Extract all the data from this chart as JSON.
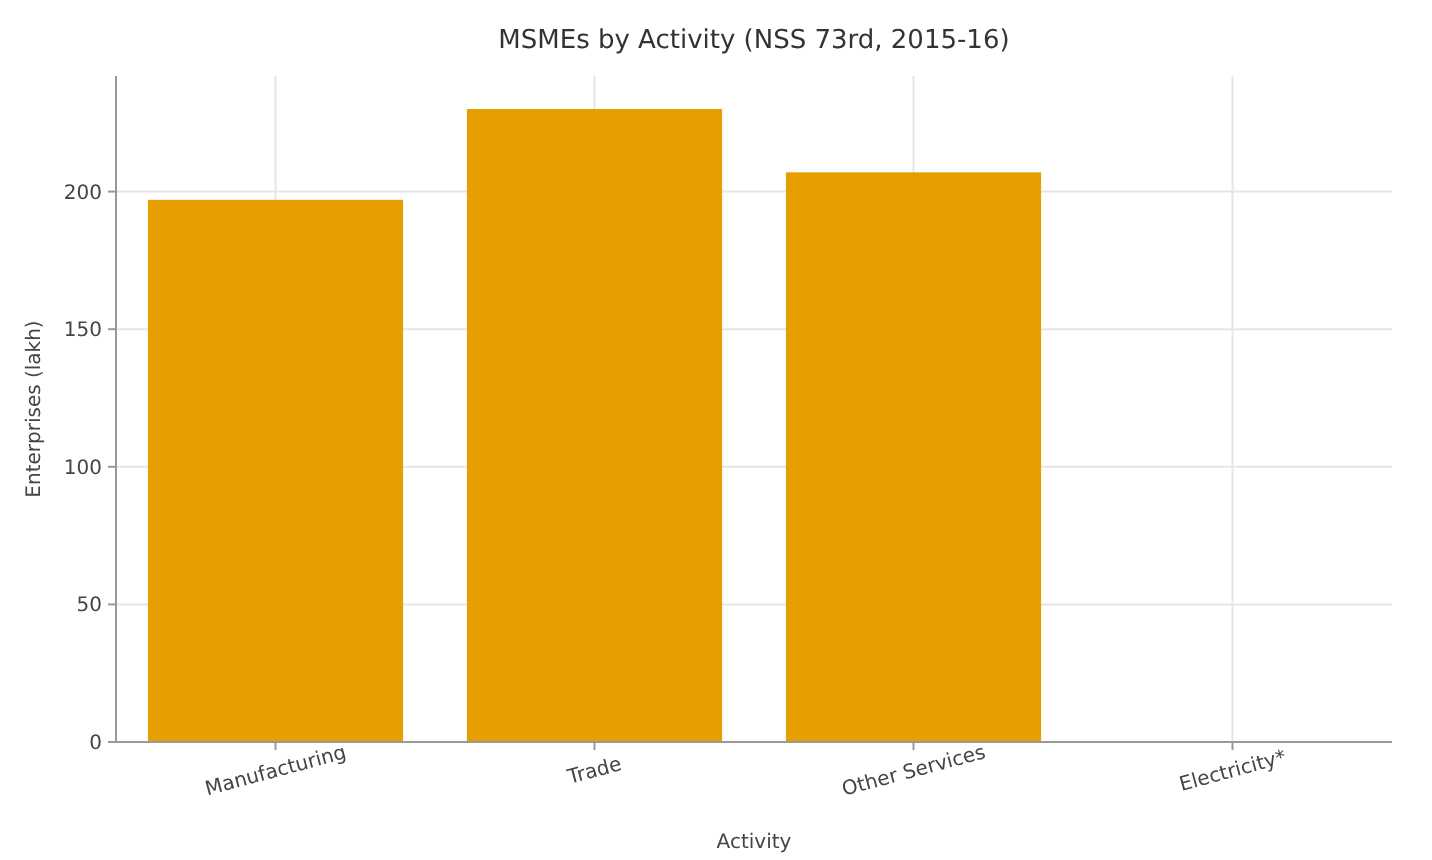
{
  "chart_data": {
    "type": "bar",
    "title": "MSMEs by Activity (NSS 73rd, 2015-16)",
    "xlabel": "Activity",
    "ylabel": "Enterprises (lakh)",
    "categories": [
      "Manufacturing",
      "Trade",
      "Other Services",
      "Electricity*"
    ],
    "values": [
      197,
      230,
      207,
      0
    ],
    "color": "#e69f00",
    "ylim": [
      0,
      242
    ],
    "yticks": [
      0,
      50,
      100,
      150,
      200
    ],
    "grid": true
  }
}
